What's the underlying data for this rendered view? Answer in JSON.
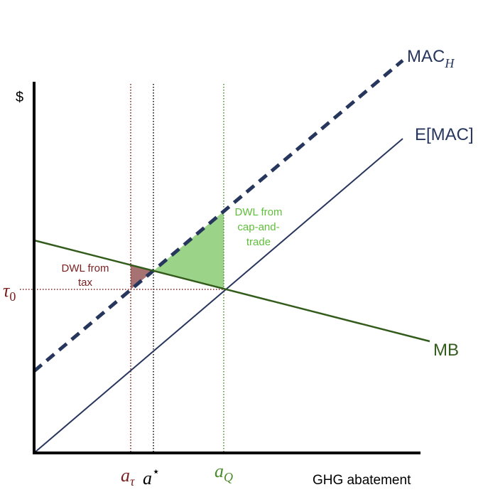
{
  "axis": {
    "y_label": "$",
    "x_label": "GHG abatement"
  },
  "curves": {
    "mac_h": {
      "label": "MAC",
      "subscript": "H"
    },
    "e_mac": {
      "label": "E[MAC]"
    },
    "mb": {
      "label": "MB"
    }
  },
  "areas": {
    "dwl_tax": {
      "lines": [
        "DWL from",
        "tax"
      ]
    },
    "dwl_cap": {
      "lines": [
        "DWL from",
        "cap-and-",
        "trade"
      ]
    }
  },
  "markers": {
    "tau": {
      "symbol": "τ",
      "subscript": "0"
    },
    "a_tau": {
      "symbol": "a",
      "subscript": "τ"
    },
    "a_star": {
      "symbol": "a",
      "superscript": "⋆"
    },
    "a_q": {
      "symbol": "a",
      "subscript": "Q"
    }
  }
}
